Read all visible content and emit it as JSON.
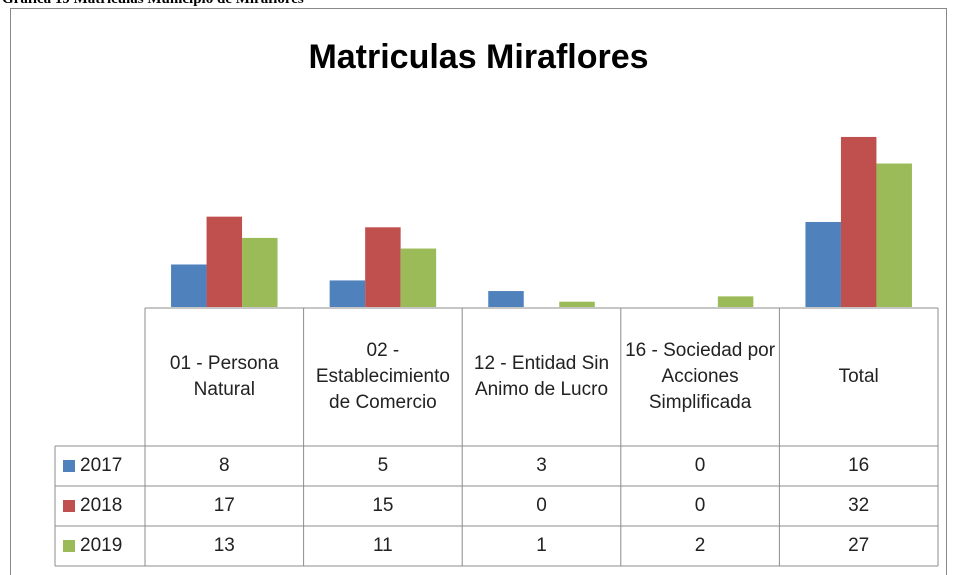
{
  "caption": "Grafica  19 Matriculas  Municipio  de Miraflores",
  "chart_data": {
    "type": "bar",
    "title": "Matriculas Miraflores",
    "categories": [
      "01 - Persona Natural",
      "02 - Establecimiento de Comercio",
      "12 - Entidad Sin Animo de Lucro",
      "16 - Sociedad por Acciones Simplificada",
      "Total"
    ],
    "series": [
      {
        "name": "2017",
        "color": "#4f81bd",
        "values": [
          8,
          5,
          3,
          0,
          16
        ]
      },
      {
        "name": "2018",
        "color": "#c0504d",
        "values": [
          17,
          15,
          0,
          0,
          32
        ]
      },
      {
        "name": "2019",
        "color": "#9bbb59",
        "values": [
          13,
          11,
          1,
          2,
          27
        ]
      }
    ],
    "ylim": [
      0,
      35
    ]
  }
}
